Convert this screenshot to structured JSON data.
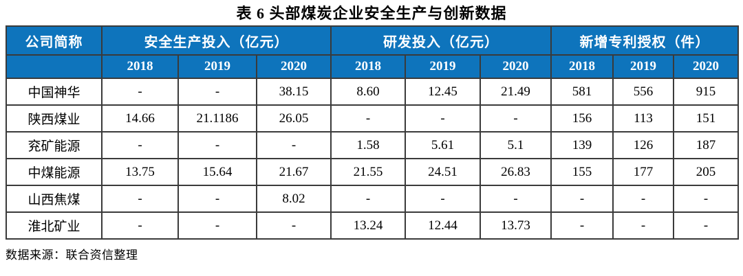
{
  "title": "表 6 头部煤炭企业安全生产与创新数据",
  "source": "数据来源：联合资信整理",
  "colors": {
    "header_bg": "#0e74bc",
    "header_text": "#ffffff",
    "border": "#3a3a3a",
    "body_text": "#000000"
  },
  "table": {
    "corner_header": "公司简称",
    "groups": [
      {
        "label": "安全生产投入（亿元）",
        "years": [
          "2018",
          "2019",
          "2020"
        ]
      },
      {
        "label": "研发投入（亿元）",
        "years": [
          "2018",
          "2019",
          "2020"
        ]
      },
      {
        "label": "新增专利授权（件）",
        "years": [
          "2018",
          "2019",
          "2020"
        ]
      }
    ],
    "rows": [
      {
        "company": "中国神华",
        "values": [
          "-",
          "-",
          "38.15",
          "8.60",
          "12.45",
          "21.49",
          "581",
          "556",
          "915"
        ]
      },
      {
        "company": "陕西煤业",
        "values": [
          "14.66",
          "21.1186",
          "26.05",
          "-",
          "-",
          "-",
          "156",
          "113",
          "151"
        ]
      },
      {
        "company": "兖矿能源",
        "values": [
          "-",
          "-",
          "-",
          "1.58",
          "5.61",
          "5.1",
          "139",
          "126",
          "187"
        ]
      },
      {
        "company": "中煤能源",
        "values": [
          "13.75",
          "15.64",
          "21.67",
          "21.55",
          "24.51",
          "26.83",
          "155",
          "177",
          "205"
        ]
      },
      {
        "company": "山西焦煤",
        "values": [
          "-",
          "-",
          "8.02",
          "-",
          "-",
          "-",
          "-",
          "-",
          "-"
        ]
      },
      {
        "company": "淮北矿业",
        "values": [
          "-",
          "-",
          "-",
          "13.24",
          "12.44",
          "13.73",
          "-",
          "-",
          "-"
        ]
      }
    ]
  }
}
